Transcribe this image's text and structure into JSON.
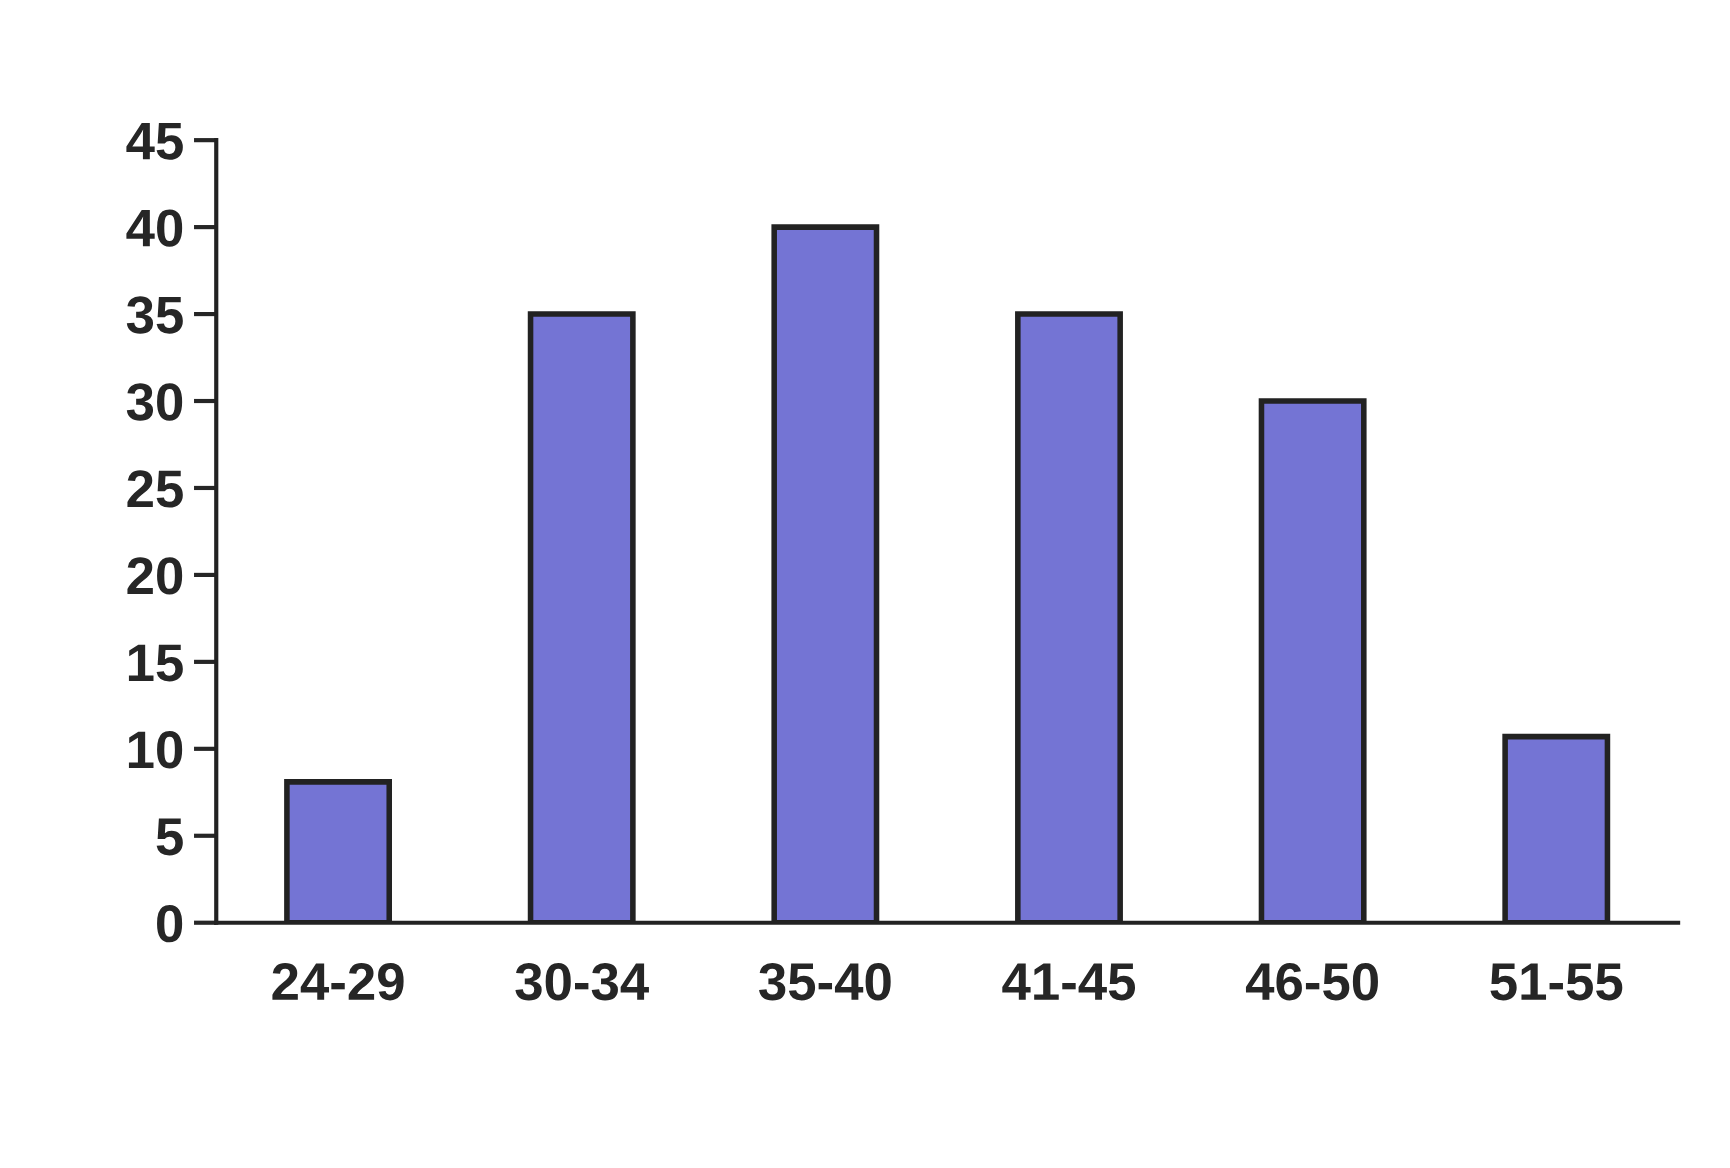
{
  "chart_data": {
    "type": "bar",
    "categories": [
      "24-29",
      "30-34",
      "35-40",
      "41-45",
      "46-50",
      "51-55"
    ],
    "values": [
      8.1,
      35,
      40,
      35,
      30,
      10.7
    ],
    "color": "#7474d4",
    "ylim": [
      0,
      45
    ],
    "yticks": [
      0,
      5,
      10,
      15,
      20,
      25,
      30,
      35,
      40,
      45
    ],
    "grid": false
  }
}
